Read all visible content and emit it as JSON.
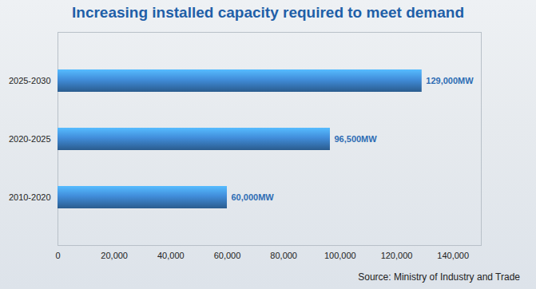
{
  "chart_data": {
    "type": "bar",
    "orientation": "horizontal",
    "title": "Increasing installed capacity required to meet demand",
    "caption": "Source: Ministry of Industry and Trade",
    "categories": [
      "2025-2030",
      "2020-2025",
      "2010-2020"
    ],
    "values": [
      129000,
      96500,
      60000
    ],
    "value_labels": [
      "129,000MW",
      "96,500MW",
      "60,000MW"
    ],
    "data_labels": true,
    "color": "#3a7fc4",
    "xlim": [
      0,
      150000
    ],
    "xticks": [
      0,
      {
        "value": 20000,
        "label": "20,000"
      },
      {
        "value": 40000,
        "label": "40,000"
      },
      {
        "value": 60000,
        "label": "60,000"
      },
      {
        "value": 80000,
        "label": "80,000"
      },
      {
        "value": 100000,
        "label": "100,000"
      },
      {
        "value": 120000,
        "label": "120,000"
      },
      {
        "value": 140000,
        "label": "140,000"
      }
    ],
    "grid": false
  }
}
